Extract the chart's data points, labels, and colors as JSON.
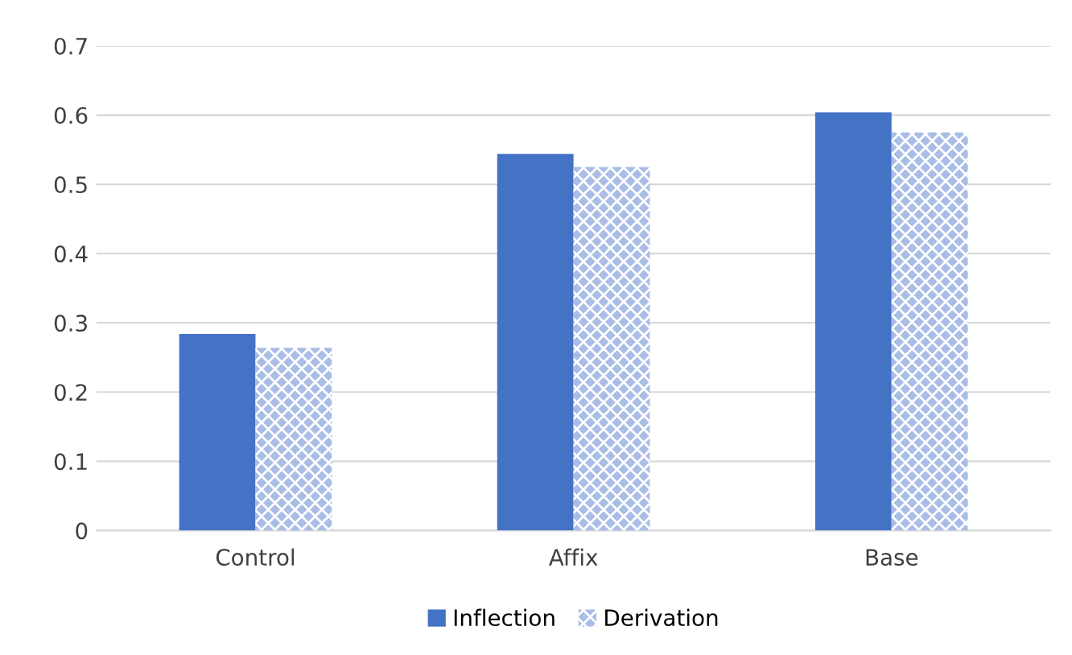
{
  "chart_data": {
    "type": "bar",
    "categories": [
      "Control",
      "Affix",
      "Base"
    ],
    "series": [
      {
        "name": "Inflection",
        "color": "#4472c4",
        "values": [
          0.284,
          0.544,
          0.604
        ]
      },
      {
        "name": "Derivation",
        "color": "#a9bde6",
        "values": [
          0.264,
          0.525,
          0.575
        ]
      }
    ],
    "ylim": [
      0,
      0.7
    ],
    "yticks": [
      {
        "value": 0,
        "label": "0"
      },
      0.1,
      0.2,
      0.3,
      0.4,
      0.5,
      0.6,
      0.7
    ],
    "grid": "y",
    "legend": "bottom"
  }
}
